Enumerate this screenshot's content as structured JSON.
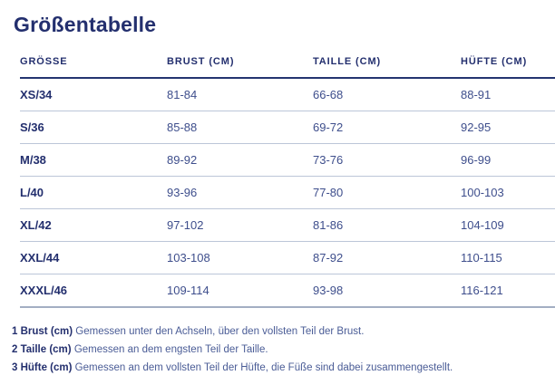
{
  "title": "Größentabelle",
  "table": {
    "headers": {
      "size": "GRÖSSE",
      "brust": "BRUST (CM)",
      "taille": "TAILLE (CM)",
      "huefte": "HÜFTE (CM)"
    },
    "rows": [
      {
        "size": "XS/34",
        "brust": "81-84",
        "taille": "66-68",
        "huefte": "88-91"
      },
      {
        "size": "S/36",
        "brust": "85-88",
        "taille": "69-72",
        "huefte": "92-95"
      },
      {
        "size": "M/38",
        "brust": "89-92",
        "taille": "73-76",
        "huefte": "96-99"
      },
      {
        "size": "L/40",
        "brust": "93-96",
        "taille": "77-80",
        "huefte": "100-103"
      },
      {
        "size": "XL/42",
        "brust": "97-102",
        "taille": "81-86",
        "huefte": "104-109"
      },
      {
        "size": "XXL/44",
        "brust": "103-108",
        "taille": "87-92",
        "huefte": "110-115"
      },
      {
        "size": "XXXL/46",
        "brust": "109-114",
        "taille": "93-98",
        "huefte": "116-121"
      }
    ]
  },
  "footnotes": [
    {
      "label": "1 Brust (cm)",
      "text": " Gemessen unter den Achseln, über den vollsten Teil der Brust."
    },
    {
      "label": "2 Taille (cm)",
      "text": " Gemessen an dem engsten Teil der Taille."
    },
    {
      "label": "3 Hüfte (cm)",
      "text": " Gemessen an dem vollsten Teil der Hüfte, die Füße sind dabei zusammengestellt."
    }
  ],
  "colors": {
    "navy": "#232f6e",
    "value_blue": "#3e4e8c",
    "footnote_blue": "#4a5c96",
    "separator": "#bcc6d8",
    "bottom_border": "#a3aec3",
    "header_underline": "#233470",
    "background": "#ffffff"
  }
}
